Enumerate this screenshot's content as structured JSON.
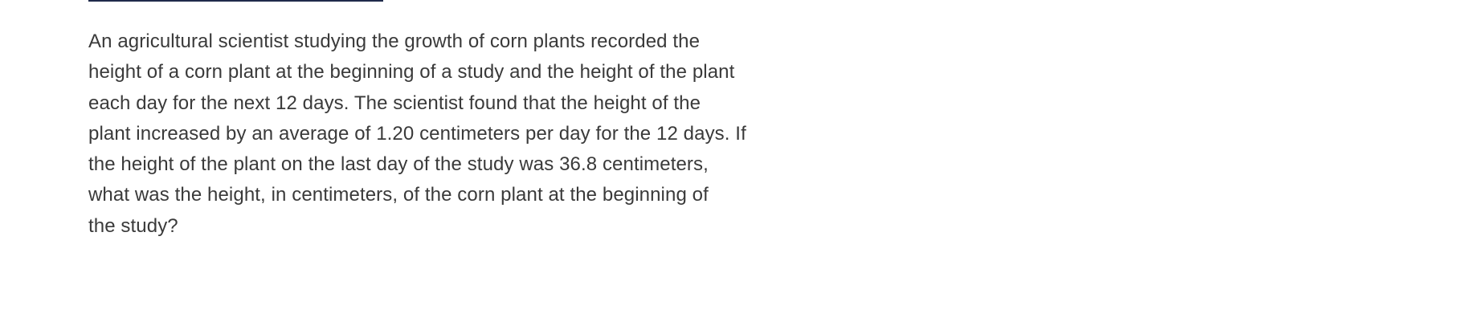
{
  "question": {
    "text": "An agricultural scientist studying the growth of corn plants recorded the\nheight of a corn plant at the beginning of a study and the height of the plant\neach day for the next 12 days. The scientist found that the height of the\nplant increased by an average of 1.20 centimeters per day for the 12 days. If\nthe height of the plant on the last day of the study was 36.8 centimeters,\nwhat was the height, in centimeters, of the corn plant at the beginning of\nthe study?"
  }
}
